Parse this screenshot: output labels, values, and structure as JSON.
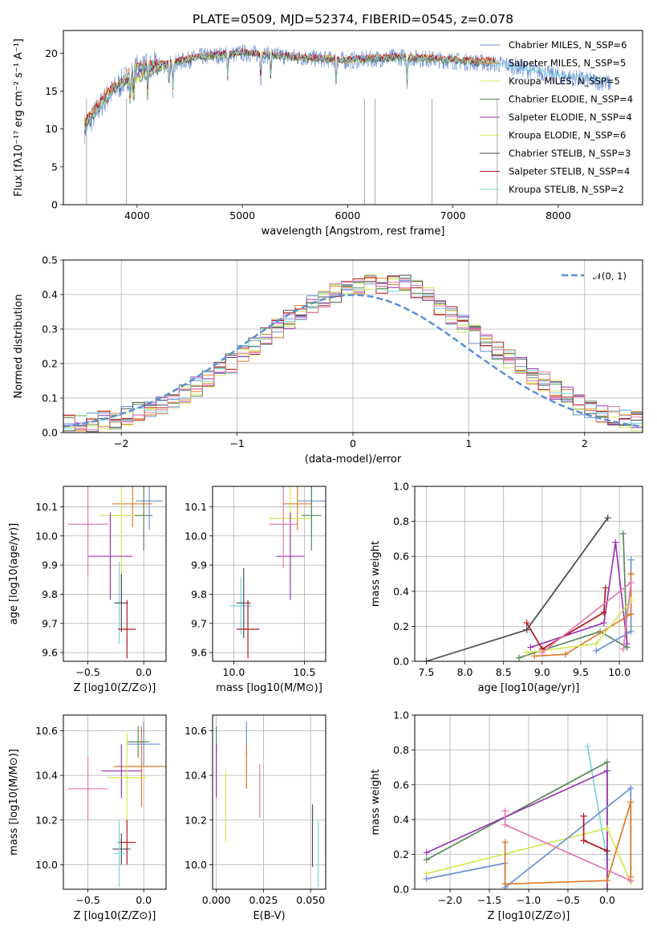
{
  "title": "PLATE=0509, MJD=52374, FIBERID=0545, z=0.078",
  "colors": {
    "chabrier_miles": "#6b8fd6",
    "salpeter_miles": "#e07b28",
    "kroupa_miles": "#d4e85a",
    "chabrier_elodie": "#5c8a5e",
    "salpeter_elodie": "#9b35b5",
    "kroupa_elodie": "#d9e85a",
    "chabrier_stelib": "#4d4d4d",
    "salpeter_stelib": "#b3181c",
    "kroupa_stelib": "#7ed3dd",
    "pink": "#e57ab0",
    "normal": "#5b8fd6"
  },
  "chart_data": [
    {
      "type": "line",
      "xlabel": "wavelength [Angstrom, rest frame]",
      "ylabel": "Flux [fλ10⁻¹⁷ erg cm⁻² s⁻¹ A⁻¹]",
      "xlim": [
        3300,
        8800
      ],
      "ylim": [
        0,
        23
      ],
      "xticks": [
        "4000",
        "5000",
        "6000",
        "7000",
        "8000"
      ],
      "yticks": [
        "0",
        "5",
        "10",
        "15",
        "20"
      ],
      "legend_position": "top-right",
      "series": [
        {
          "name": "Chabrier MILES, N_SSP=6",
          "x": [
            3500,
            3700,
            4000,
            4300,
            4600,
            5000,
            5500,
            6000,
            6500,
            7000,
            7500,
            8000,
            8500
          ],
          "y": [
            10,
            14,
            18,
            18.5,
            19.5,
            20,
            19.5,
            19,
            19.5,
            19,
            18.5,
            17,
            16
          ]
        },
        {
          "name": "Salpeter MILES, N_SSP=5",
          "x": [
            3500,
            3700,
            4000,
            4300,
            4600,
            5000,
            5500,
            6000,
            6500,
            7000,
            7400
          ],
          "y": [
            11,
            14.5,
            18.5,
            18.8,
            19.6,
            20.2,
            19.6,
            19.2,
            19.6,
            19.2,
            19
          ]
        },
        {
          "name": "Kroupa MILES, N_SSP=5",
          "x": [
            3500,
            3700,
            4000,
            4300,
            4600,
            5000,
            5500,
            6000,
            6500,
            7000,
            7400
          ],
          "y": [
            10.5,
            14,
            18.3,
            18.6,
            19.5,
            20.1,
            19.5,
            19.1,
            19.5,
            19.1,
            18.8
          ]
        },
        {
          "name": "Chabrier ELODIE, N_SSP=4",
          "x": [
            3900,
            4300,
            4600,
            5000,
            5500,
            6000,
            6500,
            6800
          ],
          "y": [
            16,
            18.5,
            19.4,
            20,
            19.4,
            19,
            19.4,
            19
          ]
        },
        {
          "name": "Salpeter ELODIE, N_SSP=4",
          "x": [
            3900,
            4300,
            4600,
            5000,
            5500,
            6000,
            6500,
            6800
          ],
          "y": [
            16.5,
            18.7,
            19.6,
            20.2,
            19.6,
            19.2,
            19.6,
            19.2
          ]
        },
        {
          "name": "Kroupa ELODIE, N_SSP=6",
          "x": [
            3900,
            4300,
            4600,
            5000,
            5500,
            6000,
            6500,
            6800
          ],
          "y": [
            16.2,
            18.6,
            19.5,
            20.1,
            19.5,
            19.1,
            19.5,
            19.1
          ]
        },
        {
          "name": "Chabrier STELIB, N_SSP=3",
          "x": [
            3500,
            3700,
            4000,
            4300,
            4600,
            5000,
            5500,
            6000,
            6500,
            7000,
            7400
          ],
          "y": [
            10,
            13.8,
            18,
            18.4,
            19.4,
            20,
            19.4,
            19,
            19.4,
            19,
            18.6
          ]
        },
        {
          "name": "Salpeter STELIB, N_SSP=4",
          "x": [
            3500,
            3700,
            4000,
            4300,
            4600,
            5000,
            5500,
            6000,
            6500,
            7000,
            7400
          ],
          "y": [
            10.8,
            14.4,
            18.4,
            18.7,
            19.6,
            20.2,
            19.6,
            19.2,
            19.6,
            19.2,
            19
          ]
        },
        {
          "name": "Kroupa STELIB, N_SSP=2",
          "x": [
            3500,
            3700,
            4000,
            4300,
            4600,
            5000,
            5500,
            6000,
            6500,
            7000,
            7400,
            8000,
            8500
          ],
          "y": [
            10.2,
            14,
            18.2,
            18.5,
            19.5,
            20.1,
            19.5,
            19.1,
            19.5,
            19.1,
            18.7,
            17.2,
            16.2
          ]
        }
      ]
    },
    {
      "type": "line",
      "xlabel": "(data-model)/error",
      "ylabel": "Normed distribution",
      "xlim": [
        -2.5,
        2.5
      ],
      "ylim": [
        0,
        0.5
      ],
      "xticks": [
        "−2",
        "−1",
        "0",
        "1",
        "2"
      ],
      "yticks": [
        "0.0",
        "0.1",
        "0.2",
        "0.3",
        "0.4",
        "0.5"
      ],
      "legend_position": "top-right",
      "series": [
        {
          "name": "𝒩(0, 1)",
          "style": "dashed",
          "x": [
            -2.5,
            -2,
            -1.5,
            -1,
            -0.5,
            0,
            0.5,
            1,
            1.5,
            2,
            2.5
          ],
          "y": [
            0.018,
            0.054,
            0.13,
            0.242,
            0.352,
            0.399,
            0.352,
            0.242,
            0.13,
            0.054,
            0.018
          ]
        }
      ],
      "histogram_envelope": {
        "x": [
          -2.5,
          -2,
          -1.5,
          -1,
          -0.5,
          0,
          0.5,
          1,
          1.5,
          2,
          2.5
        ],
        "y": [
          0.02,
          0.04,
          0.1,
          0.21,
          0.34,
          0.43,
          0.43,
          0.3,
          0.18,
          0.07,
          0.03
        ]
      }
    },
    {
      "type": "scatter",
      "xlabel": "Z [log10(Z/Z⊙)]",
      "ylabel": "age  [log10(age/yr)]",
      "xlim": [
        -0.72,
        0.2
      ],
      "ylim": [
        9.57,
        10.17
      ],
      "xticks": [
        "−0.5",
        "0.0"
      ],
      "yticks": [
        "9.6",
        "9.7",
        "9.8",
        "9.9",
        "10.0",
        "10.1"
      ],
      "points": [
        {
          "series": "Chabrier MILES",
          "x": 0.05,
          "y": 10.12,
          "xerr": 0.12,
          "yerr": 0.1
        },
        {
          "series": "Salpeter MILES",
          "x": -0.1,
          "y": 10.11,
          "xerr": 0.18,
          "yerr": 0.08
        },
        {
          "series": "Kroupa MILES",
          "x": -0.2,
          "y": 10.07,
          "xerr": 0.2,
          "yerr": 0.22
        },
        {
          "series": "Chabrier ELODIE",
          "x": 0.0,
          "y": 10.07,
          "xerr": 0.08,
          "yerr": 0.12
        },
        {
          "series": "Salpeter ELODIE",
          "x": -0.3,
          "y": 9.93,
          "xerr": 0.2,
          "yerr": 0.15
        },
        {
          "series": "pink",
          "x": -0.5,
          "y": 10.04,
          "xerr": 0.18,
          "yerr": 0.18
        },
        {
          "series": "Kroupa STELIB",
          "x": -0.22,
          "y": 9.77,
          "xerr": 0.05,
          "yerr": 0.14
        },
        {
          "series": "Chabrier STELIB",
          "x": -0.2,
          "y": 9.77,
          "xerr": 0.06,
          "yerr": 0.1
        },
        {
          "series": "Salpeter STELIB",
          "x": -0.15,
          "y": 9.68,
          "xerr": 0.08,
          "yerr": 0.1
        }
      ]
    },
    {
      "type": "scatter",
      "xlabel": "mass [log10(M/M⊙)]",
      "ylabel": "",
      "xlim": [
        9.85,
        10.65
      ],
      "ylim": [
        9.57,
        10.17
      ],
      "xticks": [
        "10.0",
        "10.5"
      ],
      "yticks": [
        "9.6",
        "9.7",
        "9.8",
        "9.9",
        "10.0",
        "10.1"
      ],
      "points": [
        {
          "series": "Chabrier MILES",
          "x": 10.55,
          "y": 10.12,
          "xerr": 0.1,
          "yerr": 0.12
        },
        {
          "series": "Salpeter MILES",
          "x": 10.45,
          "y": 10.11,
          "xerr": 0.1,
          "yerr": 0.09
        },
        {
          "series": "Kroupa MILES",
          "x": 10.4,
          "y": 10.06,
          "xerr": 0.15,
          "yerr": 0.22
        },
        {
          "series": "Chabrier ELODIE",
          "x": 10.55,
          "y": 10.07,
          "xerr": 0.07,
          "yerr": 0.12
        },
        {
          "series": "Salpeter ELODIE",
          "x": 10.4,
          "y": 9.93,
          "xerr": 0.1,
          "yerr": 0.15
        },
        {
          "series": "pink",
          "x": 10.35,
          "y": 10.04,
          "xerr": 0.1,
          "yerr": 0.15
        },
        {
          "series": "Kroupa STELIB",
          "x": 10.05,
          "y": 9.76,
          "xerr": 0.08,
          "yerr": 0.1
        },
        {
          "series": "Chabrier STELIB",
          "x": 10.07,
          "y": 9.77,
          "xerr": 0.05,
          "yerr": 0.12
        },
        {
          "series": "Salpeter STELIB",
          "x": 10.1,
          "y": 9.68,
          "xerr": 0.08,
          "yerr": 0.1
        }
      ]
    },
    {
      "type": "line",
      "xlabel": "age  [log10(age/yr)]",
      "ylabel": "mass weight",
      "xlim": [
        7.35,
        10.3
      ],
      "ylim": [
        0,
        1
      ],
      "xticks": [
        "7.5",
        "8.0",
        "8.5",
        "9.0",
        "9.5",
        "10.0"
      ],
      "yticks": [
        "0.0",
        "0.2",
        "0.4",
        "0.6",
        "0.8",
        "1.0"
      ],
      "series": [
        {
          "name": "Kroupa STELIB",
          "x": [
            8.8,
            9.85
          ],
          "y": [
            0.18,
            0.82
          ]
        },
        {
          "name": "Chabrier STELIB",
          "x": [
            7.5,
            8.8,
            9.85
          ],
          "y": [
            0.0,
            0.18,
            0.82
          ]
        },
        {
          "name": "Chabrier ELODIE",
          "x": [
            8.7,
            9.75,
            10.1,
            10.05
          ],
          "y": [
            0.02,
            0.17,
            0.08,
            0.73
          ]
        },
        {
          "name": "Salpeter ELODIE",
          "x": [
            8.85,
            9.8,
            9.95,
            10.1
          ],
          "y": [
            0.08,
            0.22,
            0.68,
            0.1
          ]
        },
        {
          "name": "Salpeter STELIB",
          "x": [
            8.8,
            9.0,
            9.8,
            9.82
          ],
          "y": [
            0.22,
            0.07,
            0.28,
            0.42
          ]
        },
        {
          "name": "Chabrier MILES",
          "x": [
            9.7,
            10.15,
            10.15,
            10.15
          ],
          "y": [
            0.06,
            0.17,
            0.58,
            0.58
          ]
        },
        {
          "name": "Salpeter MILES",
          "x": [
            8.9,
            9.3,
            10.15,
            10.15,
            10.15
          ],
          "y": [
            0.03,
            0.04,
            0.27,
            0.5,
            0.5
          ]
        },
        {
          "name": "Kroupa MILES",
          "x": [
            8.8,
            9.7,
            10.15,
            10.15
          ],
          "y": [
            0.05,
            0.1,
            0.35,
            0.35
          ]
        },
        {
          "name": "pink",
          "x": [
            9.0,
            10.15,
            10.05
          ],
          "y": [
            0.05,
            0.45,
            0.07
          ]
        }
      ]
    },
    {
      "type": "scatter",
      "xlabel": "Z [log10(Z/Z⊙)]",
      "ylabel": "mass [log10(M/M⊙)]",
      "xlim": [
        -0.72,
        0.2
      ],
      "ylim": [
        9.89,
        10.67
      ],
      "xticks": [
        "−0.5",
        "0.0"
      ],
      "yticks": [
        "10.0",
        "10.2",
        "10.4",
        "10.6"
      ],
      "points": [
        {
          "series": "Chabrier MILES",
          "x": 0.0,
          "y": 10.54,
          "xerr": 0.15,
          "yerr": 0.1
        },
        {
          "series": "Chabrier ELODIE",
          "x": -0.05,
          "y": 10.55,
          "xerr": 0.1,
          "yerr": 0.07
        },
        {
          "series": "Salpeter MILES",
          "x": -0.02,
          "y": 10.44,
          "xerr": 0.25,
          "yerr": 0.18
        },
        {
          "series": "Salpeter ELODIE",
          "x": -0.2,
          "y": 10.42,
          "xerr": 0.18,
          "yerr": 0.12
        },
        {
          "series": "Kroupa MILES",
          "x": -0.15,
          "y": 10.39,
          "xerr": 0.18,
          "yerr": 0.2
        },
        {
          "series": "pink",
          "x": -0.5,
          "y": 10.34,
          "xerr": 0.18,
          "yerr": 0.14
        },
        {
          "series": "Salpeter STELIB",
          "x": -0.15,
          "y": 10.1,
          "xerr": 0.08,
          "yerr": 0.1
        },
        {
          "series": "Chabrier STELIB",
          "x": -0.2,
          "y": 10.07,
          "xerr": 0.08,
          "yerr": 0.07
        },
        {
          "series": "Kroupa STELIB",
          "x": -0.22,
          "y": 10.05,
          "xerr": 0.05,
          "yerr": 0.15
        }
      ]
    },
    {
      "type": "scatter",
      "xlabel": "E(B-V)",
      "ylabel": "",
      "xlim": [
        -0.002,
        0.058
      ],
      "ylim": [
        9.89,
        10.67
      ],
      "xticks": [
        "0.000",
        "0.025",
        "0.050"
      ],
      "yticks": [
        "10.0",
        "10.2",
        "10.4",
        "10.6"
      ],
      "points": [
        {
          "series": "Chabrier ELODIE",
          "x": 0.0,
          "y": 10.55,
          "yerr": 0.07
        },
        {
          "series": "Salpeter ELODIE",
          "x": 0.0,
          "y": 10.42,
          "yerr": 0.12
        },
        {
          "series": "Kroupa MILES",
          "x": 0.005,
          "y": 10.26,
          "yerr": 0.16
        },
        {
          "series": "Chabrier MILES",
          "x": 0.016,
          "y": 10.56,
          "yerr": 0.08
        },
        {
          "series": "Salpeter MILES",
          "x": 0.016,
          "y": 10.44,
          "yerr": 0.1
        },
        {
          "series": "pink",
          "x": 0.023,
          "y": 10.33,
          "yerr": 0.12
        },
        {
          "series": "Chabrier STELIB",
          "x": 0.051,
          "y": 10.13,
          "yerr": 0.14
        },
        {
          "series": "Kroupa STELIB",
          "x": 0.054,
          "y": 10.05,
          "yerr": 0.15
        },
        {
          "series": "Salpeter STELIB",
          "x": 0.058,
          "y": 10.12,
          "yerr": 0.08
        }
      ]
    },
    {
      "type": "line",
      "xlabel": "Z [log10(Z/Z⊙)]",
      "ylabel": "mass weight",
      "xlim": [
        -2.45,
        0.45
      ],
      "ylim": [
        0,
        1
      ],
      "xticks": [
        "−2.0",
        "−1.5",
        "−1.0",
        "−0.5",
        "0.0"
      ],
      "yticks": [
        "0.0",
        "0.2",
        "0.4",
        "0.6",
        "0.8",
        "1.0"
      ],
      "series": [
        {
          "name": "Kroupa STELIB",
          "x": [
            -0.25,
            0.0
          ],
          "y": [
            0.82,
            0.17
          ]
        },
        {
          "name": "Chabrier ELODIE",
          "x": [
            -2.3,
            0.0,
            0.0
          ],
          "y": [
            0.17,
            0.73,
            0.0
          ]
        },
        {
          "name": "Salpeter ELODIE",
          "x": [
            -2.3,
            0.0,
            0.0
          ],
          "y": [
            0.21,
            0.68,
            0.0
          ]
        },
        {
          "name": "Kroupa MILES",
          "x": [
            -2.3,
            0.0,
            0.3
          ],
          "y": [
            0.09,
            0.35,
            0.04
          ]
        },
        {
          "name": "Chabrier MILES",
          "x": [
            -2.3,
            -1.3,
            -1.3,
            0.3,
            0.3
          ],
          "y": [
            0.06,
            0.15,
            0.01,
            0.58,
            0.05
          ]
        },
        {
          "name": "Salpeter MILES",
          "x": [
            -1.3,
            -1.3,
            0.0,
            0.3,
            0.3
          ],
          "y": [
            0.27,
            0.03,
            0.05,
            0.5,
            0.07
          ]
        },
        {
          "name": "pink",
          "x": [
            -1.3,
            -1.3,
            0.3
          ],
          "y": [
            0.45,
            0.37,
            0.05
          ]
        },
        {
          "name": "Salpeter STELIB",
          "x": [
            -0.3,
            -0.3,
            0.0
          ],
          "y": [
            0.42,
            0.28,
            0.22
          ]
        }
      ]
    }
  ]
}
